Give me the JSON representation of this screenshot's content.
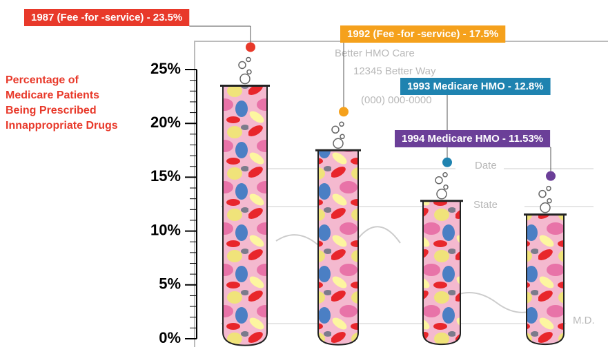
{
  "chart_data": {
    "type": "bar",
    "y_label": "Percentage of Medicare Patients Being Prescribed Innappropriate Drugs",
    "values": [
      23.5,
      17.5,
      12.8,
      11.53
    ],
    "value_labels": [
      "1987 (Fee -for -service) - 23.5%",
      "1992 (Fee -for -service) - 17.5%",
      "1993 Medicare HMO - 12.8%",
      "1994 Medicare HMO - 11.53%"
    ],
    "colors": [
      "#e8392a",
      "#f5a11c",
      "#1f83b0",
      "#6b3f98"
    ],
    "ylim": [
      0,
      25
    ],
    "yticks": [
      {
        "value": 0,
        "label": "0%"
      },
      {
        "value": 5,
        "label": "5%"
      },
      {
        "value": 10,
        "label": "10%"
      },
      {
        "value": 15,
        "label": "15%"
      },
      {
        "value": 20,
        "label": "20%"
      },
      {
        "value": 25,
        "label": "25%"
      }
    ],
    "yminorticks": [
      1,
      2,
      3,
      4,
      6,
      7,
      8,
      9,
      11,
      12,
      13,
      14,
      16,
      17,
      18,
      19,
      21,
      22,
      23,
      24
    ],
    "background_text": [
      "Better HMO Care",
      "12345 Better Way",
      "(000) 000-0000",
      "Date",
      "State",
      "M.D."
    ]
  }
}
